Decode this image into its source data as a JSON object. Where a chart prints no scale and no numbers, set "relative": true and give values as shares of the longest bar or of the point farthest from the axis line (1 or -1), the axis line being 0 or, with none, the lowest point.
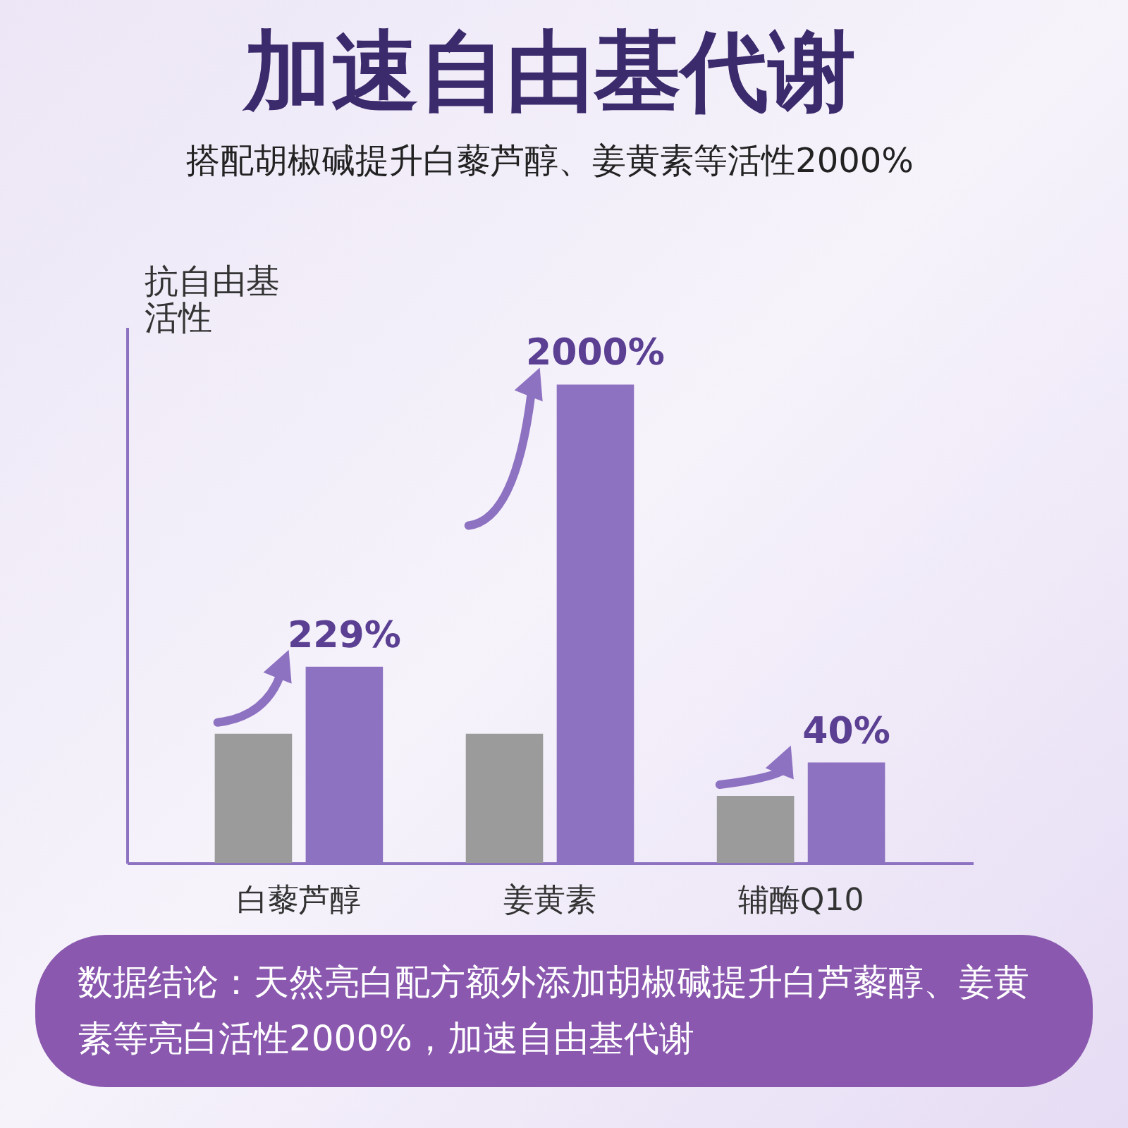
{
  "chart_data": {
    "type": "bar",
    "title": "加速自由基代谢",
    "subtitle": "搭配胡椒碱提升白藜芦醇、姜黄素等活性2000%",
    "ylabel": "抗自由基活性",
    "categories": [
      "白藜芦醇",
      "姜黄素",
      "辅酶Q10"
    ],
    "relative": true,
    "series": [
      {
        "color": "#9b9b9b",
        "values": [
          0.27,
          0.27,
          0.14
        ]
      },
      {
        "color": "#8e72c2",
        "values": [
          0.41,
          1,
          0.21
        ]
      }
    ],
    "legend": false,
    "annotations": [
      {
        "text": "229%",
        "x": "白藜芦醇",
        "y": 0.41
      },
      {
        "text": "2000%",
        "x": "姜黄素",
        "y": 1
      },
      {
        "text": "40%",
        "x": "辅酶Q10",
        "y": 0.21
      },
      "数据结论：天然亮白配方额外添加胡椒碱提升白芦藜醇、姜黄素等亮白活性2000%，加速自由基代谢"
    ]
  }
}
